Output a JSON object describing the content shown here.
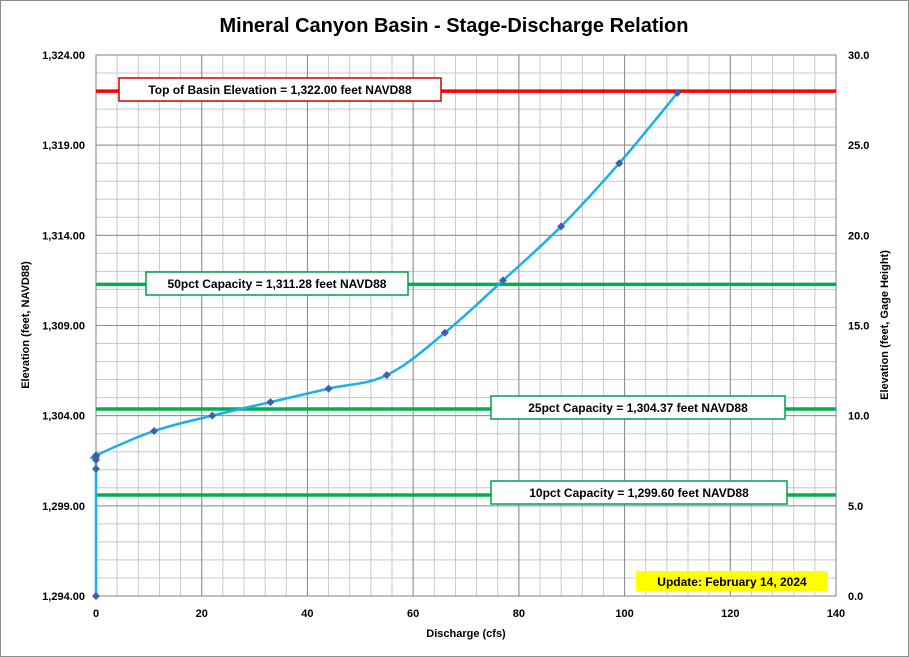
{
  "chart_data": {
    "type": "line",
    "title": "Mineral Canyon Basin - Stage-Discharge Relation",
    "xlabel": "Discharge  (cfs)",
    "ylabel": "Elevation  (feet, NAVD88)",
    "y2label": "Elevation  (feet, Gage  Height)",
    "xlim": [
      0,
      140
    ],
    "ylim": [
      1294.0,
      1324.0
    ],
    "y2lim": [
      0.0,
      30.0
    ],
    "x_ticks": [
      "0",
      "20",
      "40",
      "60",
      "80",
      "100",
      "120",
      "140"
    ],
    "y_ticks": [
      "1,294.00",
      "1,299.00",
      "1,304.00",
      "1,309.00",
      "1,314.00",
      "1,319.00",
      "1,324.00"
    ],
    "y2_ticks": [
      "0.0",
      "5.0",
      "10.0",
      "15.0",
      "20.0",
      "25.0",
      "30.0"
    ],
    "grid": true,
    "series": [
      {
        "color": "#1ab0e8",
        "marker_color": "#3f5fa8",
        "x": [
          0,
          0,
          0,
          0,
          0,
          11,
          22,
          33,
          44,
          55,
          66,
          77,
          88,
          99,
          110
        ],
        "y": [
          1294.0,
          1301.05,
          1301.55,
          1301.7,
          1301.8,
          1303.15,
          1304.0,
          1304.75,
          1305.5,
          1306.25,
          1308.6,
          1311.5,
          1314.5,
          1318.0,
          1321.9
        ]
      }
    ],
    "reference_lines": [
      {
        "label": "Top of Basin Elevation = 1,322.00  feet NAVD88",
        "y": 1322.0,
        "color": "#ff0000",
        "box_border": "#cc0000"
      },
      {
        "label": "50pct Capacity = 1,311.28  feet NAVD88",
        "y": 1311.28,
        "color": "#00b050",
        "box_border": "#00a050"
      },
      {
        "label": "25pct Capacity = 1,304.37  feet NAVD88",
        "y": 1304.37,
        "color": "#00b050",
        "box_border": "#00a050"
      },
      {
        "label": "10pct Capacity = 1,299.60  feet NAVD88",
        "y": 1299.6,
        "color": "#00b050",
        "box_border": "#00a050"
      }
    ],
    "update_badge": {
      "text": "Update: February 14, 2024",
      "color": "#ffff00"
    }
  }
}
